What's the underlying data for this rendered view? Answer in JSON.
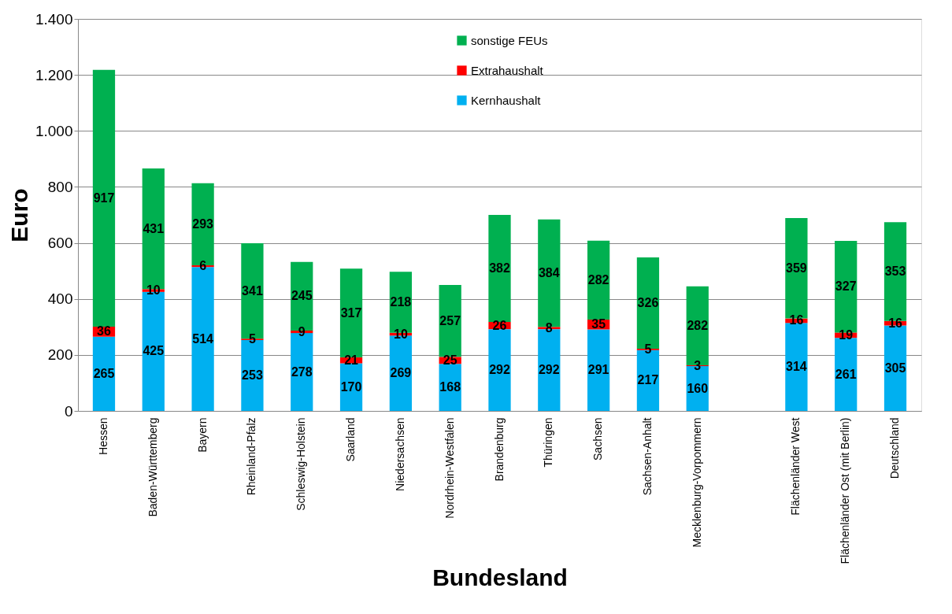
{
  "chart_data": {
    "type": "bar",
    "stacked": true,
    "xlabel": "Bundesland",
    "ylabel": "Euro",
    "categories": [
      "Hessen",
      "Baden-Württemberg",
      "Bayern",
      "Rheinland-Pfalz",
      "Schleswig-Holstein",
      "Saarland",
      "Niedersachsen",
      "Nordrhein-Westfalen",
      "Brandenburg",
      "Thüringen",
      "Sachsen",
      "Sachsen-Anhalt",
      "Mecklenburg-Vorpommern",
      null,
      "Flächenländer West",
      "Flächenländer Ost (mit Berlin)",
      "Deutschland"
    ],
    "series": [
      {
        "name": "Kernhaushalt",
        "color": "#00b0f0",
        "values": [
          265,
          425,
          514,
          253,
          278,
          170,
          269,
          168,
          292,
          292,
          291,
          217,
          160,
          null,
          314,
          261,
          305
        ]
      },
      {
        "name": "Extrahaushalt",
        "color": "#ff0000",
        "values": [
          36,
          10,
          6,
          5,
          9,
          21,
          10,
          25,
          26,
          8,
          35,
          5,
          3,
          null,
          16,
          19,
          16
        ]
      },
      {
        "name": "sonstige FEUs",
        "color": "#00b050",
        "values": [
          917,
          431,
          293,
          341,
          245,
          317,
          218,
          257,
          382,
          384,
          282,
          326,
          282,
          null,
          359,
          327,
          353
        ]
      }
    ],
    "ylim": [
      0,
      1400
    ],
    "yticks": [
      0,
      200,
      400,
      600,
      800,
      {
        "value": 1000,
        "label": "1.000"
      },
      {
        "value": 1200,
        "label": "1.200"
      },
      {
        "value": 1400,
        "label": "1.400"
      }
    ],
    "grid": "y",
    "legend": "top",
    "data_labels": true
  }
}
